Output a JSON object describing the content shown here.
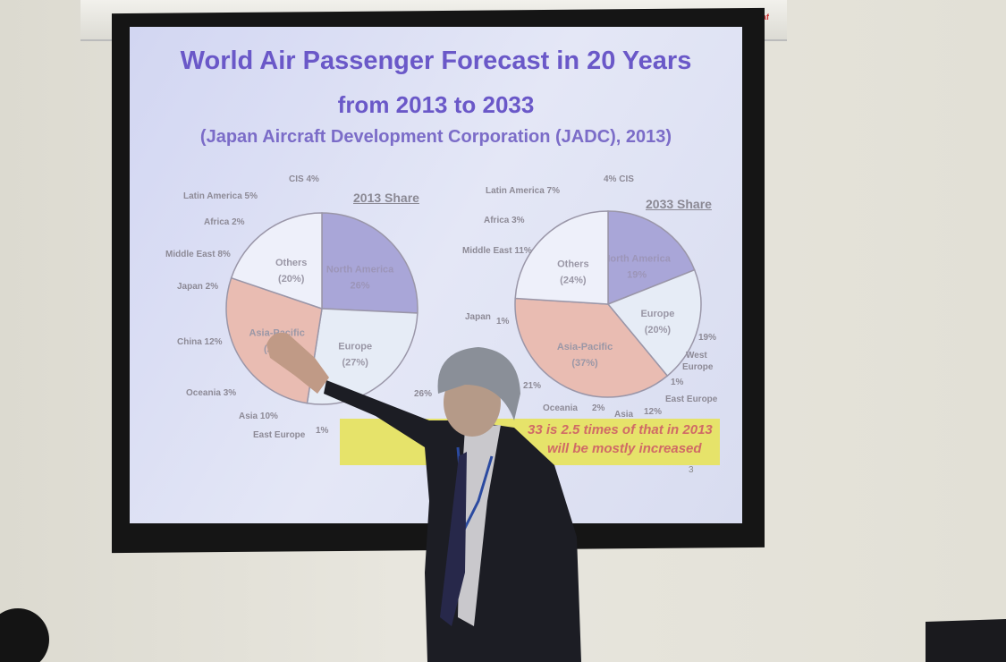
{
  "projector_screen": {
    "brand": "Redleaf"
  },
  "slide": {
    "title_line1": "World Air Passenger Forecast in 20 Years",
    "title_line2": "from 2013 to 2033",
    "subtitle": "(Japan Aircraft Development Corporation (JADC), 2013)",
    "page_number": "3",
    "note_line1": "33 is 2.5 times of that in 2013",
    "note_line2": "will be  mostly increased",
    "colors": {
      "north_america": "#a9a6d8",
      "europe": "#e6ecf6",
      "asia_pacific": "#e9bcb2",
      "others": "#eef0fa",
      "title": "#6a58c8"
    }
  },
  "chart_data": [
    {
      "type": "pie",
      "title": "2013 Share",
      "slices": [
        {
          "label": "North America",
          "pct_label": "26%",
          "value": 26
        },
        {
          "label": "Europe",
          "pct_label": "(27%)",
          "value": 27
        },
        {
          "label": "Asia-Pacific",
          "pct_label": "(28%)",
          "value": 28
        },
        {
          "label": "Others",
          "pct_label": "(20%)",
          "value": 20
        }
      ],
      "callouts": [
        "CIS 4%",
        "Latin America 5%",
        "Africa 2%",
        "Middle East 8%",
        "Japan 2%",
        "China 12%",
        "Oceania 3%",
        "Asia 10%",
        "East Europe",
        "1%",
        "26%"
      ]
    },
    {
      "type": "pie",
      "title": "2033 Share",
      "slices": [
        {
          "label": "North America",
          "pct_label": "19%",
          "value": 19
        },
        {
          "label": "Europe",
          "pct_label": "(20%)",
          "value": 20
        },
        {
          "label": "Asia-Pacific",
          "pct_label": "(37%)",
          "value": 37
        },
        {
          "label": "Others",
          "pct_label": "(24%)",
          "value": 24
        }
      ],
      "callouts": [
        "4% CIS",
        "Latin America 7%",
        "Africa 3%",
        "Middle East 11%",
        "Japan",
        "1%",
        "19%",
        "West",
        "Europe",
        "1%",
        "East Europe",
        "21%",
        "Oceania",
        "2%",
        "Asia",
        "12%"
      ]
    }
  ]
}
